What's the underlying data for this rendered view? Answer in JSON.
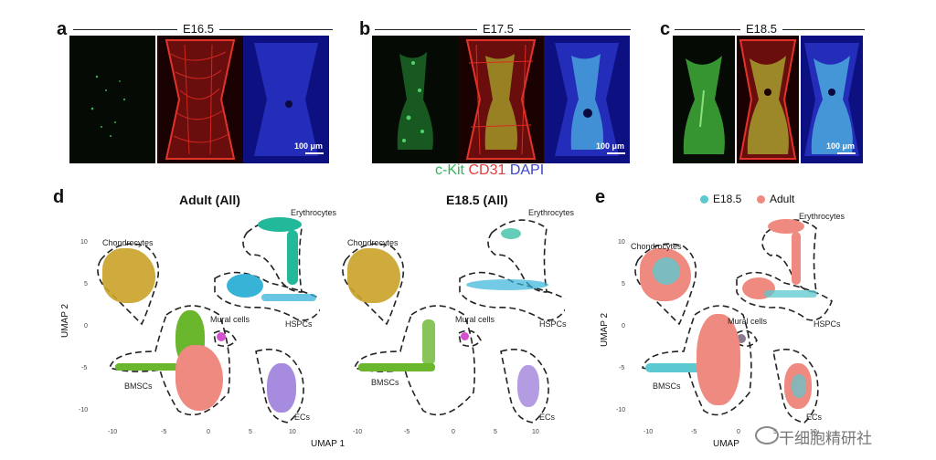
{
  "panels_top": [
    {
      "letter": "a",
      "stage": "E16.5"
    },
    {
      "letter": "b",
      "stage": "E17.5"
    },
    {
      "letter": "c",
      "stage": "E18.5"
    }
  ],
  "scale_label": "100 μm",
  "caption": {
    "ckit": "c-Kit",
    "cd31": "CD31",
    "dapi": "DAPI",
    "colors": {
      "ckit": "#2fb45a",
      "cd31": "#e23b3b",
      "dapi": "#3b43c8"
    }
  },
  "panel_d": {
    "letter": "d",
    "titles": [
      "Adult (All)",
      "E18.5 (All)"
    ],
    "xlabel": "UMAP 1",
    "ylabel": "UMAP 2",
    "xticks": [
      "-10",
      "-5",
      "0",
      "5",
      "10"
    ],
    "yticks": [
      "10",
      "5",
      "0",
      "-5",
      "-10"
    ],
    "clusters": [
      "Chondrocytes",
      "Erythrocytes",
      "HSPCs",
      "Mural cells",
      "BMSCs",
      "ECs"
    ]
  },
  "panel_e": {
    "letter": "e",
    "legend": [
      {
        "label": "E18.5",
        "color": "#5cc8cf"
      },
      {
        "label": "Adult",
        "color": "#ef8a80"
      }
    ],
    "ylabel": "UMAP 2",
    "xlabel": "UMAP",
    "xticks": [
      "-10",
      "-5",
      "0",
      "5",
      "10"
    ],
    "yticks": [
      "10",
      "5",
      "0",
      "-5",
      "-10"
    ],
    "clusters": [
      "Chondrocytes",
      "Erythrocytes",
      "HSPCs",
      "Mural cells",
      "BMSCs",
      "ECs"
    ]
  },
  "cluster_colors": {
    "Chondrocytes": "#c9a227",
    "Erythrocytes": "#22b89a",
    "HSPCs": "#37b3d8",
    "Mural cells": "#d64fd0",
    "BMSCs": "#6ab72e",
    "ECs": "#a78bde",
    "Adult": "#ef8a80"
  },
  "watermark": "干细胞精研社"
}
